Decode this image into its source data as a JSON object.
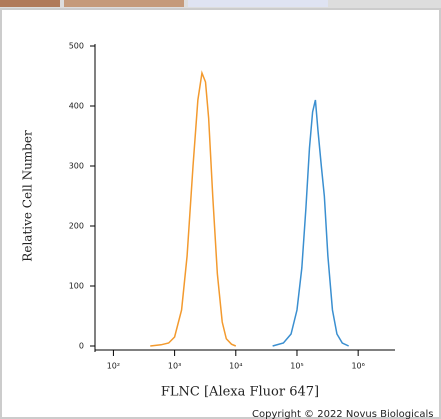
{
  "chart_data": {
    "type": "line",
    "xlabel": "FLNC [Alexa Fluor 647]",
    "ylabel": "Relative Cell Number",
    "annotation": "Copyright © 2022 Novus Biologicals",
    "xscale": "log",
    "xlim": [
      50,
      4000000
    ],
    "ylim": [
      0,
      500
    ],
    "xticks": [
      {
        "value": 100,
        "label": "10²"
      },
      {
        "value": 1000,
        "label": "10³"
      },
      {
        "value": 10000,
        "label": "10⁴"
      },
      {
        "value": 100000,
        "label": "10⁵"
      },
      {
        "value": 1000000,
        "label": "10⁶"
      }
    ],
    "yticks": [
      0,
      100,
      200,
      300,
      400,
      500
    ],
    "series": [
      {
        "color": "#f39a2e",
        "x": [
          400,
          600,
          800,
          1000,
          1300,
          1600,
          2000,
          2400,
          2800,
          3200,
          3600,
          4200,
          5000,
          6000,
          7000,
          8500,
          10000
        ],
        "values": [
          0,
          2,
          5,
          15,
          60,
          150,
          300,
          410,
          455,
          440,
          380,
          250,
          120,
          40,
          12,
          3,
          0
        ]
      },
      {
        "color": "#3a8fd0",
        "x": [
          40000,
          60000,
          80000,
          100000,
          120000,
          140000,
          160000,
          180000,
          200000,
          220000,
          250000,
          280000,
          320000,
          380000,
          450000,
          550000,
          700000
        ],
        "values": [
          0,
          5,
          20,
          60,
          130,
          230,
          330,
          390,
          410,
          360,
          300,
          250,
          150,
          60,
          20,
          5,
          0
        ]
      }
    ]
  }
}
